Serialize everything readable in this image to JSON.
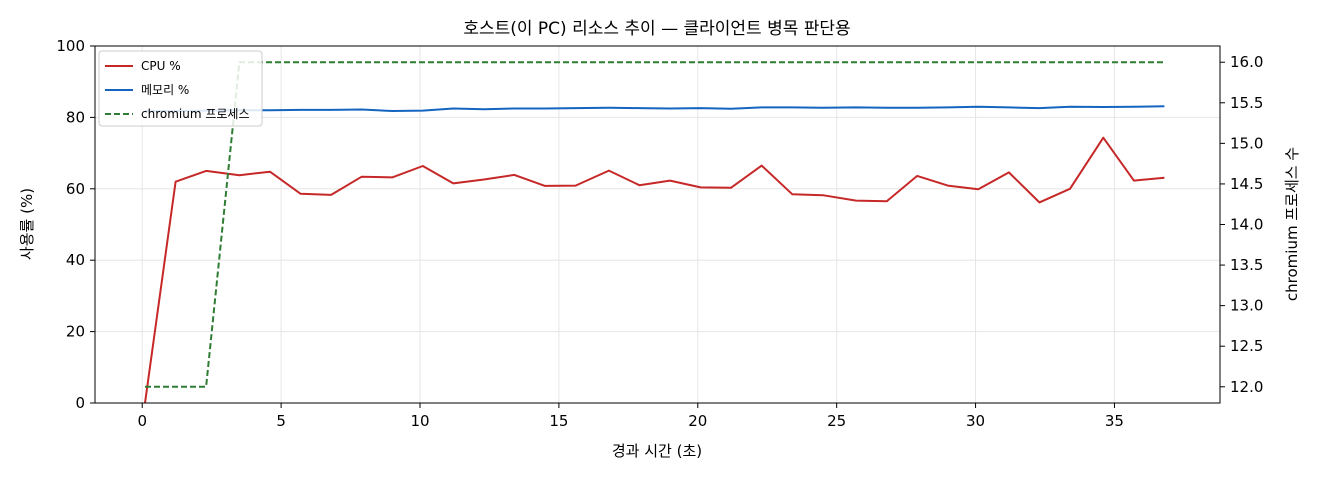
{
  "chart_data": {
    "type": "line",
    "title": "호스트(이 PC) 리소스 추이 — 클라이언트 병목 판단용",
    "xlabel": "경과 시간 (초)",
    "ylabel": "사용률 (%)",
    "y2label": "chromium 프로세스 수",
    "xlim": [
      -1.7,
      38.8
    ],
    "ylim": [
      0,
      100
    ],
    "y2lim": [
      11.8,
      16.2
    ],
    "xticks": [
      "0",
      "5",
      "10",
      "15",
      "20",
      "25",
      "30",
      "35"
    ],
    "xtick_values": [
      0,
      5,
      10,
      15,
      20,
      25,
      30,
      35
    ],
    "yticks": [
      "0",
      "20",
      "40",
      "60",
      "80",
      "100"
    ],
    "ytick_values": [
      0,
      20,
      40,
      60,
      80,
      100
    ],
    "y2ticks": [
      "12.0",
      "12.5",
      "13.0",
      "13.5",
      "14.0",
      "14.5",
      "15.0",
      "15.5",
      "16.0"
    ],
    "y2tick_values": [
      12.0,
      12.5,
      13.0,
      13.5,
      14.0,
      14.5,
      15.0,
      15.5,
      16.0
    ],
    "grid": true,
    "legend_position": "top-left",
    "x": [
      0.1,
      1.2,
      2.3,
      3.5,
      4.6,
      5.7,
      6.8,
      7.9,
      9.0,
      10.1,
      11.2,
      12.3,
      13.4,
      14.5,
      15.6,
      16.8,
      17.9,
      19.0,
      20.1,
      21.2,
      22.3,
      23.4,
      24.5,
      25.7,
      26.8,
      27.9,
      29.0,
      30.1,
      31.2,
      32.3,
      33.4,
      34.6,
      35.7,
      36.8
    ],
    "series": [
      {
        "name": "CPU %",
        "axis": "left",
        "color": "#c62828",
        "style": "solid",
        "values": [
          0,
          62.0,
          65.0,
          63.8,
          64.8,
          58.6,
          58.3,
          63.4,
          63.2,
          66.4,
          61.5,
          62.6,
          63.9,
          60.8,
          60.9,
          65.1,
          61.0,
          62.3,
          60.4,
          60.3,
          66.5,
          58.5,
          58.2,
          56.7,
          56.5,
          63.6,
          60.9,
          59.9,
          64.6,
          56.2,
          60.0,
          74.3,
          62.3,
          63.1
        ]
      },
      {
        "name": "메모리 %",
        "axis": "left",
        "color": "#1565c0",
        "style": "solid",
        "values": [
          81.8,
          81.8,
          81.9,
          82.0,
          82.0,
          82.1,
          82.1,
          82.2,
          81.8,
          81.9,
          82.5,
          82.3,
          82.5,
          82.5,
          82.6,
          82.7,
          82.6,
          82.5,
          82.6,
          82.4,
          82.8,
          82.8,
          82.7,
          82.8,
          82.7,
          82.7,
          82.8,
          83.0,
          82.8,
          82.6,
          83.0,
          82.9,
          83.0,
          83.1
        ]
      },
      {
        "name": "chromium 프로세스",
        "axis": "right",
        "color": "#2e7d32",
        "style": "dashed",
        "values": [
          12,
          12,
          12,
          16,
          16,
          16,
          16,
          16,
          16,
          16,
          16,
          16,
          16,
          16,
          16,
          16,
          16,
          16,
          16,
          16,
          16,
          16,
          16,
          16,
          16,
          16,
          16,
          16,
          16,
          16,
          16,
          16,
          16,
          16
        ]
      }
    ]
  }
}
